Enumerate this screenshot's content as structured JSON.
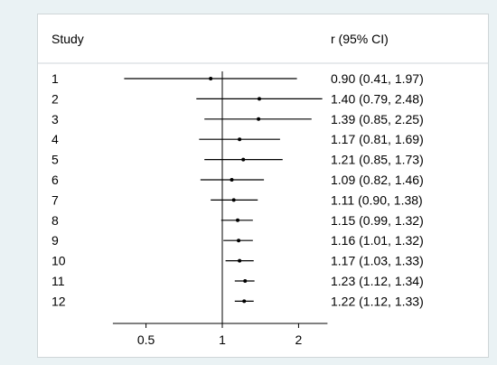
{
  "chart_data": {
    "type": "forest",
    "column_headers": {
      "study": "Study",
      "estimate": "r (95% CI)"
    },
    "x_scale": "log",
    "xlim": [
      0.37,
      2.6
    ],
    "x_ticks": [
      0.5,
      1,
      2
    ],
    "x_tick_labels": [
      "0.5",
      "1",
      "2"
    ],
    "reference_line": 1,
    "grid": false,
    "studies": [
      {
        "label": "1",
        "estimate": 0.9,
        "lower": 0.41,
        "upper": 1.97,
        "text": "0.90 (0.41, 1.97)"
      },
      {
        "label": "2",
        "estimate": 1.4,
        "lower": 0.79,
        "upper": 2.48,
        "text": "1.40 (0.79, 2.48)"
      },
      {
        "label": "3",
        "estimate": 1.39,
        "lower": 0.85,
        "upper": 2.25,
        "text": "1.39 (0.85, 2.25)"
      },
      {
        "label": "4",
        "estimate": 1.17,
        "lower": 0.81,
        "upper": 1.69,
        "text": "1.17 (0.81, 1.69)"
      },
      {
        "label": "5",
        "estimate": 1.21,
        "lower": 0.85,
        "upper": 1.73,
        "text": "1.21 (0.85, 1.73)"
      },
      {
        "label": "6",
        "estimate": 1.09,
        "lower": 0.82,
        "upper": 1.46,
        "text": "1.09 (0.82, 1.46)"
      },
      {
        "label": "7",
        "estimate": 1.11,
        "lower": 0.9,
        "upper": 1.38,
        "text": "1.11 (0.90, 1.38)"
      },
      {
        "label": "8",
        "estimate": 1.15,
        "lower": 0.99,
        "upper": 1.32,
        "text": "1.15 (0.99, 1.32)"
      },
      {
        "label": "9",
        "estimate": 1.16,
        "lower": 1.01,
        "upper": 1.32,
        "text": "1.16 (1.01, 1.32)"
      },
      {
        "label": "10",
        "estimate": 1.17,
        "lower": 1.03,
        "upper": 1.33,
        "text": "1.17 (1.03, 1.33)"
      },
      {
        "label": "11",
        "estimate": 1.23,
        "lower": 1.12,
        "upper": 1.34,
        "text": "1.23 (1.12, 1.34)"
      },
      {
        "label": "12",
        "estimate": 1.22,
        "lower": 1.12,
        "upper": 1.33,
        "text": "1.22 (1.12, 1.33)"
      }
    ]
  }
}
